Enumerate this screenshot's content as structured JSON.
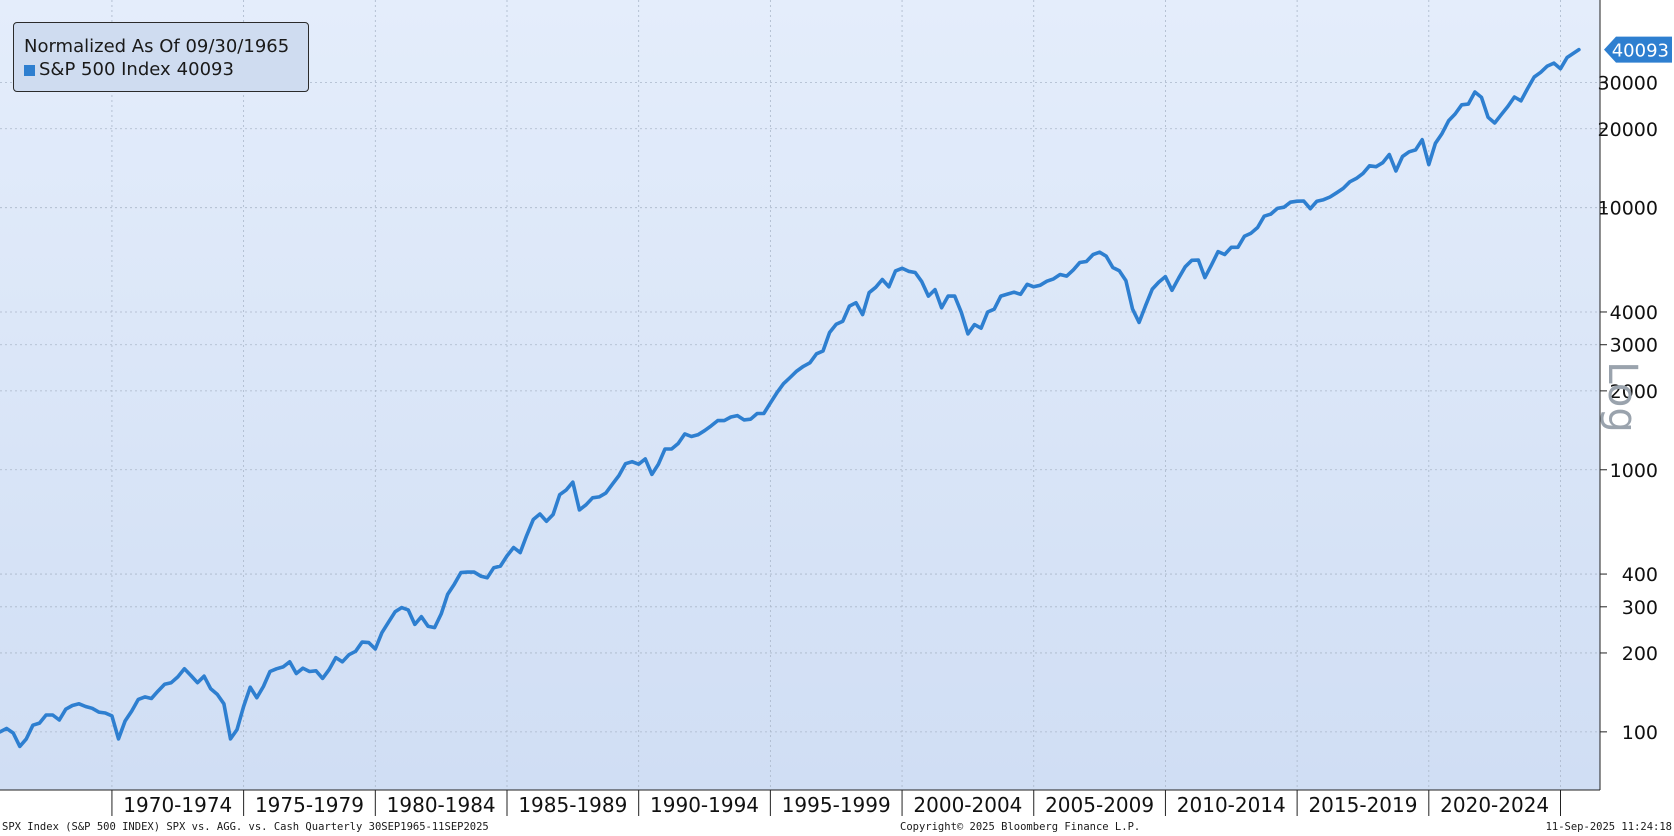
{
  "legend": {
    "title": "Normalized As Of 09/30/1965",
    "series_label": "S&P 500 Index",
    "series_value": "40093"
  },
  "axis_side_label": "Log",
  "last_value_tag": "40093",
  "footer": {
    "left": "SPX Index (S&P 500 INDEX) SPX vs. AGG. vs. Cash  Quarterly 30SEP1965-11SEP2025",
    "center": "Copyright© 2025 Bloomberg Finance L.P.",
    "right": "11-Sep-2025 11:24:18"
  },
  "colors": {
    "line": "#2e7fd0",
    "bg_top": "#e4edfb",
    "bg_bottom": "#d0def4",
    "grid": "#aab7c9",
    "tag": "#2e7fd0",
    "legend_bg": "#cfdcf0"
  },
  "chart_data": {
    "type": "line",
    "y_scale": "log",
    "ylim": [
      60,
      62000
    ],
    "xlim": [
      1965.75,
      2026.5
    ],
    "grid": true,
    "legend_position": "top-left",
    "y_ticks": [
      100,
      200,
      300,
      400,
      1000,
      2000,
      3000,
      4000,
      10000,
      20000,
      30000
    ],
    "x_ticks": [
      {
        "label": "1970-1974",
        "start": 1970,
        "end": 1975
      },
      {
        "label": "1975-1979",
        "start": 1975,
        "end": 1980
      },
      {
        "label": "1980-1984",
        "start": 1980,
        "end": 1985
      },
      {
        "label": "1985-1989",
        "start": 1985,
        "end": 1990
      },
      {
        "label": "1990-1994",
        "start": 1990,
        "end": 1995
      },
      {
        "label": "1995-1999",
        "start": 1995,
        "end": 2000
      },
      {
        "label": "2000-2004",
        "start": 2000,
        "end": 2005
      },
      {
        "label": "2005-2009",
        "start": 2005,
        "end": 2010
      },
      {
        "label": "2010-2014",
        "start": 2010,
        "end": 2015
      },
      {
        "label": "2015-2019",
        "start": 2015,
        "end": 2020
      },
      {
        "label": "2020-2024",
        "start": 2020,
        "end": 2025
      }
    ],
    "series": [
      {
        "name": "S&P 500 Index",
        "points": [
          [
            1965.75,
            100
          ],
          [
            1966.0,
            103
          ],
          [
            1966.25,
            99
          ],
          [
            1966.5,
            88
          ],
          [
            1966.75,
            94
          ],
          [
            1967.0,
            106
          ],
          [
            1967.25,
            108
          ],
          [
            1967.5,
            116
          ],
          [
            1967.75,
            116
          ],
          [
            1968.0,
            111
          ],
          [
            1968.25,
            122
          ],
          [
            1968.5,
            126
          ],
          [
            1968.75,
            128
          ],
          [
            1969.0,
            125
          ],
          [
            1969.25,
            123
          ],
          [
            1969.5,
            119
          ],
          [
            1969.75,
            118
          ],
          [
            1970.0,
            115
          ],
          [
            1970.25,
            94
          ],
          [
            1970.5,
            110
          ],
          [
            1970.75,
            120
          ],
          [
            1971.0,
            133
          ],
          [
            1971.25,
            136
          ],
          [
            1971.5,
            134
          ],
          [
            1971.75,
            143
          ],
          [
            1972.0,
            152
          ],
          [
            1972.25,
            154
          ],
          [
            1972.5,
            162
          ],
          [
            1972.75,
            174
          ],
          [
            1973.0,
            164
          ],
          [
            1973.25,
            154
          ],
          [
            1973.5,
            163
          ],
          [
            1973.75,
            146
          ],
          [
            1974.0,
            139
          ],
          [
            1974.25,
            128
          ],
          [
            1974.5,
            94
          ],
          [
            1974.75,
            102
          ],
          [
            1975.0,
            125
          ],
          [
            1975.25,
            148
          ],
          [
            1975.5,
            135
          ],
          [
            1975.75,
            149
          ],
          [
            1976.0,
            170
          ],
          [
            1976.25,
            174
          ],
          [
            1976.5,
            177
          ],
          [
            1976.75,
            185
          ],
          [
            1977.0,
            167
          ],
          [
            1977.25,
            175
          ],
          [
            1977.5,
            170
          ],
          [
            1977.75,
            171
          ],
          [
            1978.0,
            160
          ],
          [
            1978.25,
            173
          ],
          [
            1978.5,
            192
          ],
          [
            1978.75,
            185
          ],
          [
            1979.0,
            197
          ],
          [
            1979.25,
            203
          ],
          [
            1979.5,
            220
          ],
          [
            1979.75,
            219
          ],
          [
            1980.0,
            207
          ],
          [
            1980.25,
            239
          ],
          [
            1980.5,
            262
          ],
          [
            1980.75,
            287
          ],
          [
            1981.0,
            298
          ],
          [
            1981.25,
            292
          ],
          [
            1981.5,
            257
          ],
          [
            1981.75,
            275
          ],
          [
            1982.0,
            253
          ],
          [
            1982.25,
            250
          ],
          [
            1982.5,
            282
          ],
          [
            1982.75,
            335
          ],
          [
            1983.0,
            366
          ],
          [
            1983.25,
            405
          ],
          [
            1983.5,
            407
          ],
          [
            1983.75,
            407
          ],
          [
            1984.0,
            393
          ],
          [
            1984.25,
            387
          ],
          [
            1984.5,
            423
          ],
          [
            1984.75,
            429
          ],
          [
            1985.0,
            469
          ],
          [
            1985.25,
            505
          ],
          [
            1985.5,
            483
          ],
          [
            1985.75,
            562
          ],
          [
            1986.0,
            646
          ],
          [
            1986.25,
            678
          ],
          [
            1986.5,
            636
          ],
          [
            1986.75,
            675
          ],
          [
            1987.0,
            803
          ],
          [
            1987.25,
            838
          ],
          [
            1987.5,
            897
          ],
          [
            1987.75,
            703
          ],
          [
            1988.0,
            735
          ],
          [
            1988.25,
            782
          ],
          [
            1988.5,
            788
          ],
          [
            1988.75,
            815
          ],
          [
            1989.0,
            880
          ],
          [
            1989.25,
            950
          ],
          [
            1989.5,
            1055
          ],
          [
            1989.75,
            1073
          ],
          [
            1990.0,
            1050
          ],
          [
            1990.25,
            1100
          ],
          [
            1990.5,
            960
          ],
          [
            1990.75,
            1050
          ],
          [
            1991.0,
            1200
          ],
          [
            1991.25,
            1200
          ],
          [
            1991.5,
            1260
          ],
          [
            1991.75,
            1370
          ],
          [
            1992.0,
            1340
          ],
          [
            1992.25,
            1360
          ],
          [
            1992.5,
            1410
          ],
          [
            1992.75,
            1470
          ],
          [
            1993.0,
            1540
          ],
          [
            1993.25,
            1540
          ],
          [
            1993.5,
            1590
          ],
          [
            1993.75,
            1610
          ],
          [
            1994.0,
            1550
          ],
          [
            1994.25,
            1560
          ],
          [
            1994.5,
            1640
          ],
          [
            1994.75,
            1640
          ],
          [
            1995.0,
            1800
          ],
          [
            1995.25,
            1970
          ],
          [
            1995.5,
            2130
          ],
          [
            1995.75,
            2250
          ],
          [
            1996.0,
            2380
          ],
          [
            1996.25,
            2480
          ],
          [
            1996.5,
            2560
          ],
          [
            1996.75,
            2770
          ],
          [
            1997.0,
            2840
          ],
          [
            1997.25,
            3340
          ],
          [
            1997.5,
            3590
          ],
          [
            1997.75,
            3690
          ],
          [
            1998.0,
            4210
          ],
          [
            1998.25,
            4340
          ],
          [
            1998.5,
            3910
          ],
          [
            1998.75,
            4740
          ],
          [
            1999.0,
            4970
          ],
          [
            1999.25,
            5320
          ],
          [
            1999.5,
            4990
          ],
          [
            1999.75,
            5740
          ],
          [
            2000.0,
            5870
          ],
          [
            2000.25,
            5720
          ],
          [
            2000.5,
            5660
          ],
          [
            2000.75,
            5220
          ],
          [
            2001.0,
            4600
          ],
          [
            2001.25,
            4870
          ],
          [
            2001.5,
            4150
          ],
          [
            2001.75,
            4600
          ],
          [
            2002.0,
            4600
          ],
          [
            2002.25,
            3990
          ],
          [
            2002.5,
            3300
          ],
          [
            2002.75,
            3580
          ],
          [
            2003.0,
            3470
          ],
          [
            2003.25,
            4000
          ],
          [
            2003.5,
            4100
          ],
          [
            2003.75,
            4600
          ],
          [
            2004.0,
            4680
          ],
          [
            2004.25,
            4760
          ],
          [
            2004.5,
            4670
          ],
          [
            2004.75,
            5100
          ],
          [
            2005.0,
            4990
          ],
          [
            2005.25,
            5060
          ],
          [
            2005.5,
            5240
          ],
          [
            2005.75,
            5350
          ],
          [
            2006.0,
            5560
          ],
          [
            2006.25,
            5480
          ],
          [
            2006.5,
            5790
          ],
          [
            2006.75,
            6180
          ],
          [
            2007.0,
            6230
          ],
          [
            2007.25,
            6620
          ],
          [
            2007.5,
            6760
          ],
          [
            2007.75,
            6530
          ],
          [
            2008.0,
            5910
          ],
          [
            2008.25,
            5750
          ],
          [
            2008.5,
            5270
          ],
          [
            2008.75,
            4110
          ],
          [
            2009.0,
            3650
          ],
          [
            2009.25,
            4240
          ],
          [
            2009.5,
            4890
          ],
          [
            2009.75,
            5200
          ],
          [
            2010.0,
            5460
          ],
          [
            2010.25,
            4840
          ],
          [
            2010.5,
            5380
          ],
          [
            2010.75,
            5950
          ],
          [
            2011.0,
            6300
          ],
          [
            2011.25,
            6310
          ],
          [
            2011.5,
            5410
          ],
          [
            2011.75,
            6050
          ],
          [
            2012.0,
            6800
          ],
          [
            2012.25,
            6630
          ],
          [
            2012.5,
            7060
          ],
          [
            2012.75,
            7060
          ],
          [
            2013.0,
            7780
          ],
          [
            2013.25,
            7990
          ],
          [
            2013.5,
            8400
          ],
          [
            2013.75,
            9280
          ],
          [
            2014.0,
            9450
          ],
          [
            2014.25,
            9940
          ],
          [
            2014.5,
            10040
          ],
          [
            2014.75,
            10490
          ],
          [
            2015.0,
            10590
          ],
          [
            2015.25,
            10600
          ],
          [
            2015.5,
            9910
          ],
          [
            2015.75,
            10590
          ],
          [
            2016.0,
            10730
          ],
          [
            2016.25,
            10980
          ],
          [
            2016.5,
            11400
          ],
          [
            2016.75,
            11850
          ],
          [
            2017.0,
            12550
          ],
          [
            2017.25,
            12930
          ],
          [
            2017.5,
            13510
          ],
          [
            2017.75,
            14450
          ],
          [
            2018.0,
            14330
          ],
          [
            2018.25,
            14840
          ],
          [
            2018.5,
            15960
          ],
          [
            2018.75,
            13800
          ],
          [
            2019.0,
            15680
          ],
          [
            2019.25,
            16340
          ],
          [
            2019.5,
            16620
          ],
          [
            2019.75,
            18170
          ],
          [
            2020.0,
            14600
          ],
          [
            2020.25,
            17600
          ],
          [
            2020.5,
            19170
          ],
          [
            2020.75,
            21450
          ],
          [
            2021.0,
            22780
          ],
          [
            2021.25,
            24700
          ],
          [
            2021.5,
            24850
          ],
          [
            2021.75,
            27640
          ],
          [
            2022.0,
            26360
          ],
          [
            2022.25,
            22130
          ],
          [
            2022.5,
            21040
          ],
          [
            2022.75,
            22630
          ],
          [
            2023.0,
            24320
          ],
          [
            2023.25,
            26440
          ],
          [
            2023.5,
            25570
          ],
          [
            2023.75,
            28500
          ],
          [
            2024.0,
            31520
          ],
          [
            2024.25,
            32860
          ],
          [
            2024.5,
            34700
          ],
          [
            2024.75,
            35600
          ],
          [
            2025.0,
            33900
          ],
          [
            2025.25,
            37400
          ],
          [
            2025.7,
            40093
          ]
        ]
      }
    ]
  }
}
